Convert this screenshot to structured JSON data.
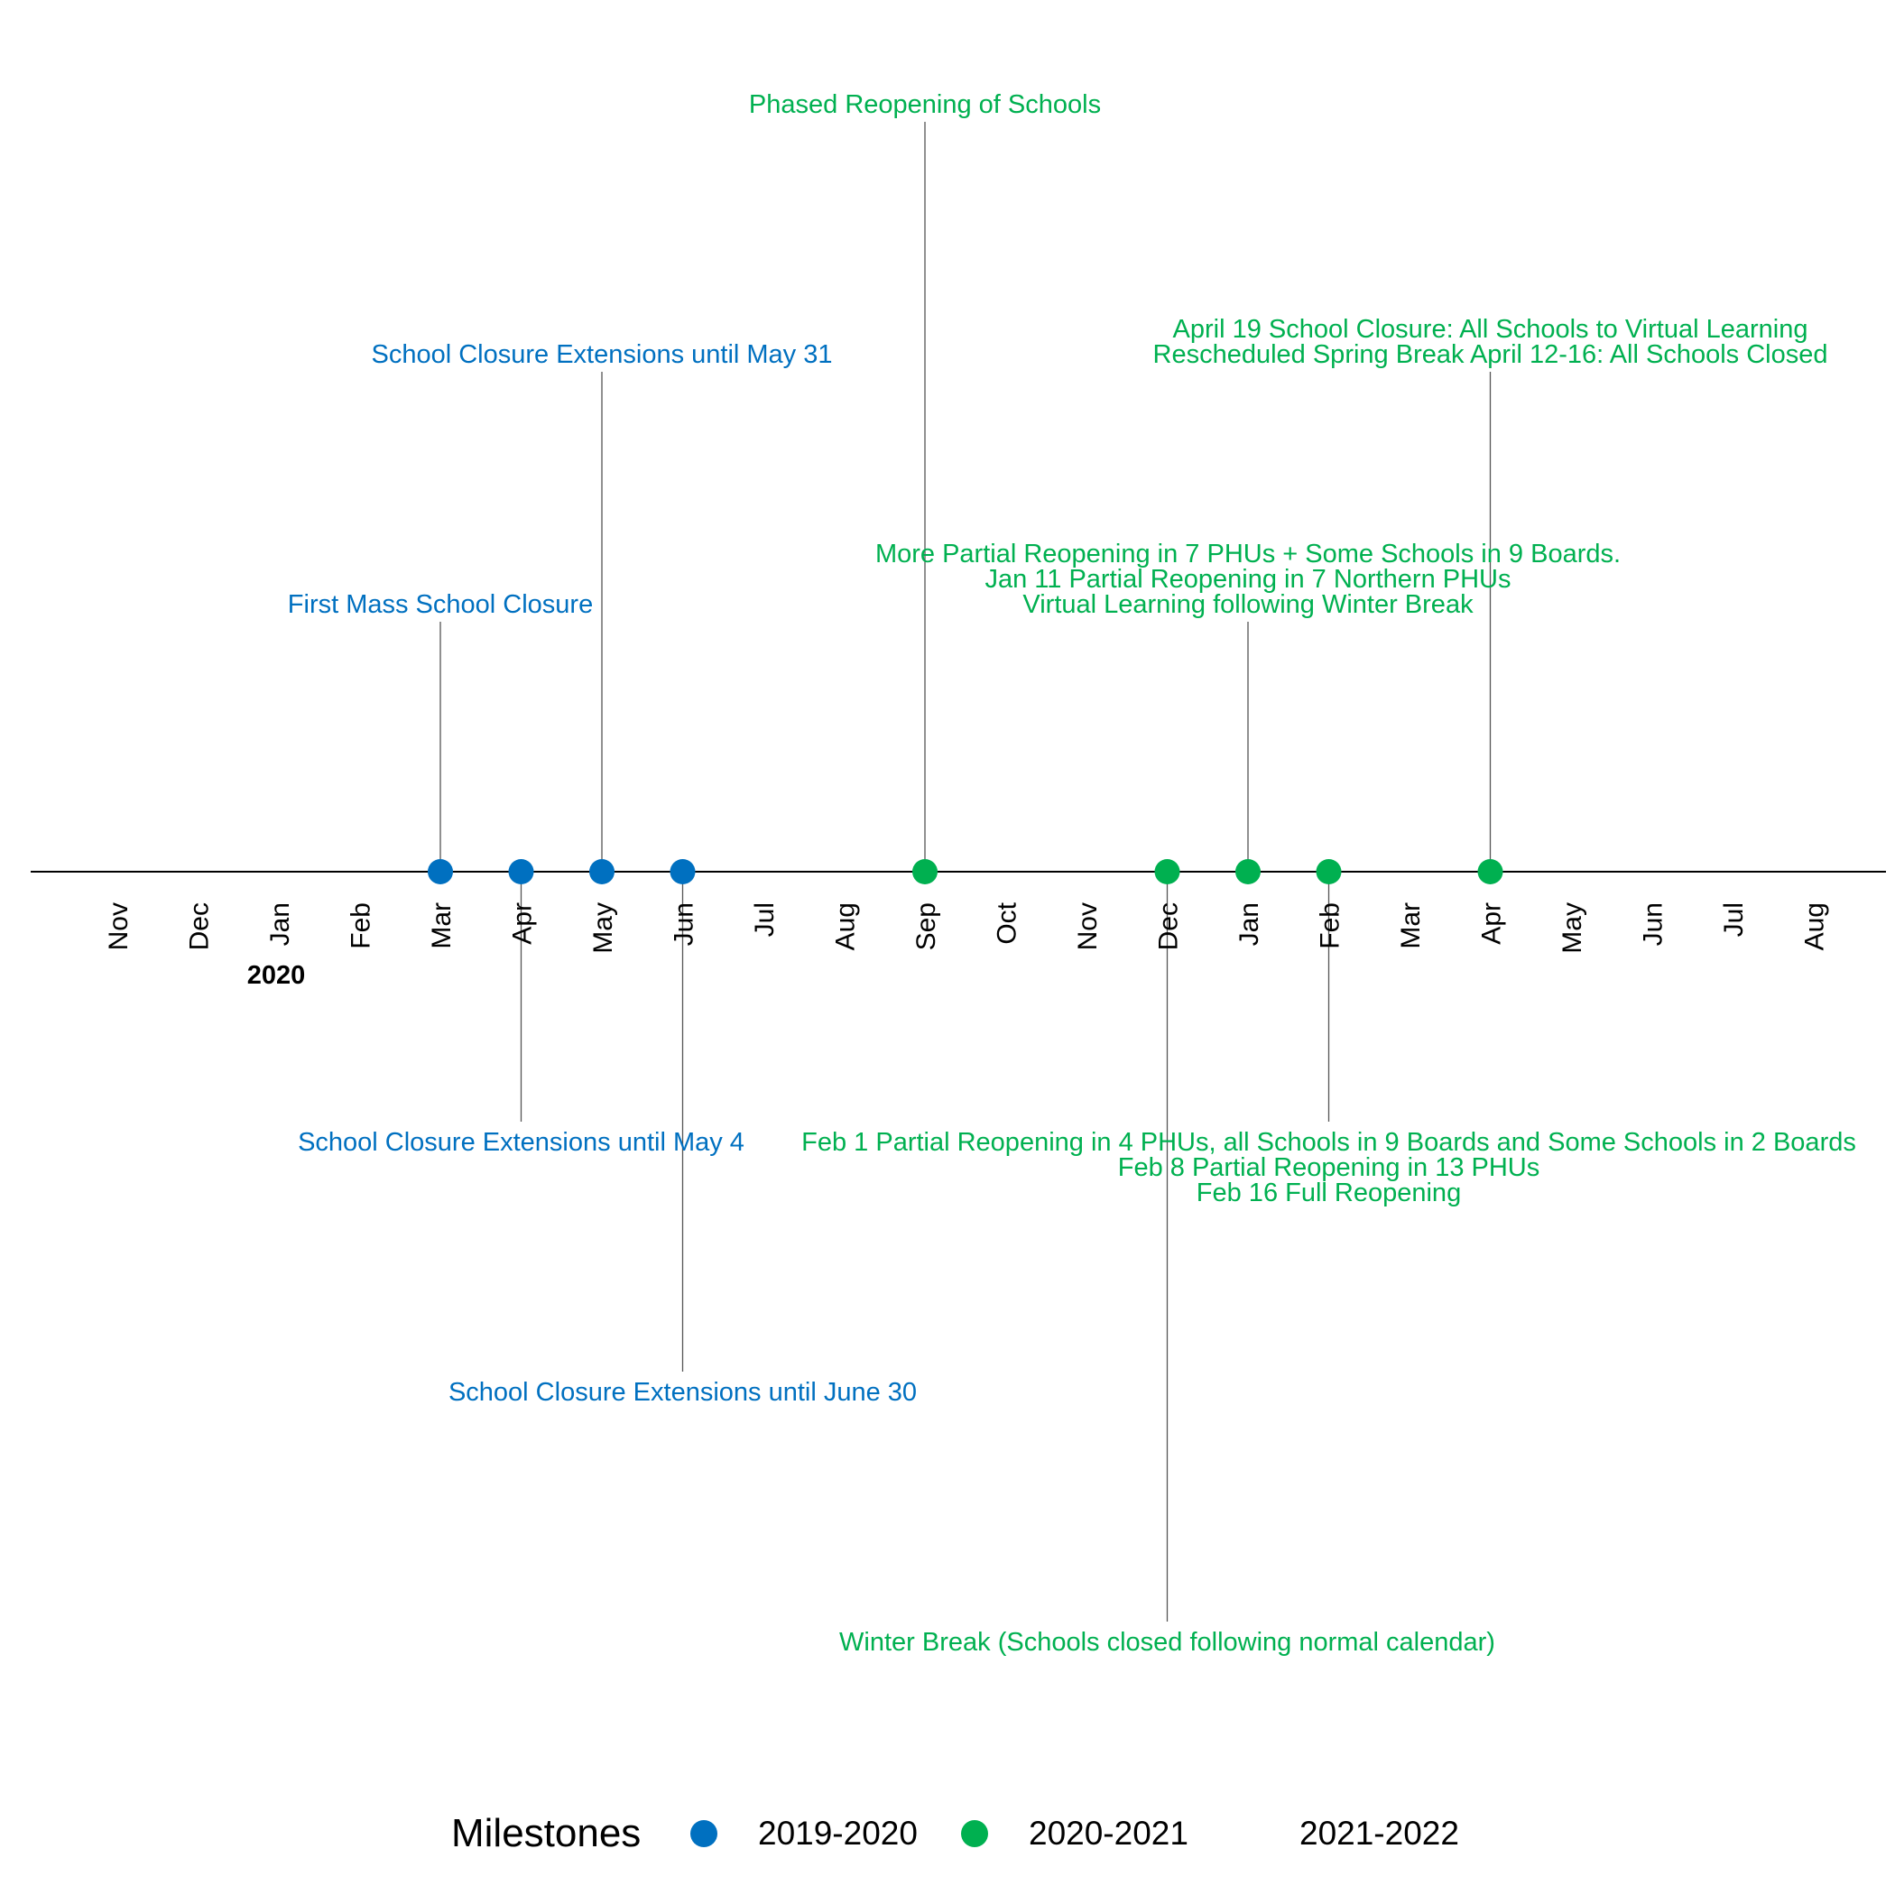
{
  "chart_data": {
    "type": "timeline",
    "x_range": [
      "2019-10-01",
      "2021-09-01"
    ],
    "months": [
      {
        "date": "2019-11-01",
        "label": "Nov"
      },
      {
        "date": "2019-12-01",
        "label": "Dec"
      },
      {
        "date": "2020-01-01",
        "label": "Jan"
      },
      {
        "date": "2020-02-01",
        "label": "Feb"
      },
      {
        "date": "2020-03-01",
        "label": "Mar"
      },
      {
        "date": "2020-04-01",
        "label": "Apr"
      },
      {
        "date": "2020-05-01",
        "label": "May"
      },
      {
        "date": "2020-06-01",
        "label": "Jun"
      },
      {
        "date": "2020-07-01",
        "label": "Jul"
      },
      {
        "date": "2020-08-01",
        "label": "Aug"
      },
      {
        "date": "2020-09-01",
        "label": "Sep"
      },
      {
        "date": "2020-10-01",
        "label": "Oct"
      },
      {
        "date": "2020-11-01",
        "label": "Nov"
      },
      {
        "date": "2020-12-01",
        "label": "Dec"
      },
      {
        "date": "2021-01-01",
        "label": "Jan"
      },
      {
        "date": "2021-02-01",
        "label": "Feb"
      },
      {
        "date": "2021-03-01",
        "label": "Mar"
      },
      {
        "date": "2021-04-01",
        "label": "Apr"
      },
      {
        "date": "2021-05-01",
        "label": "May"
      },
      {
        "date": "2021-06-01",
        "label": "Jun"
      },
      {
        "date": "2021-07-01",
        "label": "Jul"
      },
      {
        "date": "2021-08-01",
        "label": "Aug"
      }
    ],
    "years": [
      {
        "date": "2020-01-01",
        "label": "2020"
      }
    ],
    "series": [
      {
        "name": "2019-2020",
        "color": "#0070C0"
      },
      {
        "name": "2020-2021",
        "color": "#00B050"
      },
      {
        "name": "2021-2022",
        "color": null
      }
    ],
    "events": [
      {
        "date": "2020-03-01",
        "series": "2019-2020",
        "position": 1,
        "lines": [
          "First Mass School Closure"
        ]
      },
      {
        "date": "2020-04-01",
        "series": "2019-2020",
        "position": -1,
        "lines": [
          "School Closure Extensions until May 4"
        ]
      },
      {
        "date": "2020-05-01",
        "series": "2019-2020",
        "position": 2,
        "lines": [
          "School Closure Extensions until May 31"
        ]
      },
      {
        "date": "2020-06-01",
        "series": "2019-2020",
        "position": -2,
        "lines": [
          "School Closure Extensions until June 30"
        ]
      },
      {
        "date": "2020-09-01",
        "series": "2020-2021",
        "position": 3,
        "lines": [
          "Phased Reopening of Schools"
        ]
      },
      {
        "date": "2020-12-01",
        "series": "2020-2021",
        "position": -3,
        "lines": [
          "Winter Break (Schools closed following normal calendar)"
        ]
      },
      {
        "date": "2021-01-01",
        "series": "2020-2021",
        "position": 1,
        "lines": [
          "More Partial Reopening in 7 PHUs + Some Schools in 9 Boards.",
          "Jan 11 Partial Reopening in 7 Northern PHUs",
          "Virtual Learning following Winter Break"
        ]
      },
      {
        "date": "2021-02-01",
        "series": "2020-2021",
        "position": -1,
        "lines": [
          "Feb 1 Partial Reopening in 4 PHUs, all Schools in 9 Boards and Some Schools in 2 Boards",
          "Feb 8 Partial Reopening in 13 PHUs",
          "Feb 16 Full Reopening"
        ]
      },
      {
        "date": "2021-04-01",
        "series": "2020-2021",
        "position": 2,
        "lines": [
          "April 19 School Closure: All Schools to Virtual Learning",
          "Rescheduled Spring Break April 12-16: All Schools Closed"
        ]
      }
    ],
    "legend": {
      "title": "Milestones",
      "position": "bottom"
    },
    "grid": false
  }
}
